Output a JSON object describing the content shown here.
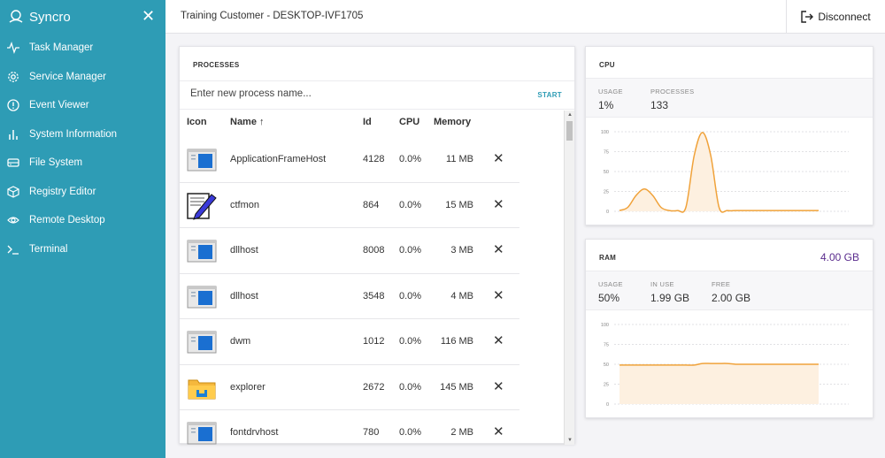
{
  "app": {
    "name": "Syncro",
    "close_icon": "close-icon"
  },
  "sidebar": {
    "items": [
      {
        "label": "Task Manager",
        "icon": "activity-icon"
      },
      {
        "label": "Service Manager",
        "icon": "gear-icon"
      },
      {
        "label": "Event Viewer",
        "icon": "alert-circle-icon"
      },
      {
        "label": "System Information",
        "icon": "bar-chart-icon"
      },
      {
        "label": "File System",
        "icon": "hard-drive-icon"
      },
      {
        "label": "Registry Editor",
        "icon": "box-icon"
      },
      {
        "label": "Remote Desktop",
        "icon": "eye-icon"
      },
      {
        "label": "Terminal",
        "icon": "terminal-icon"
      }
    ]
  },
  "header": {
    "title": "Training Customer - DESKTOP-IVF1705",
    "disconnect_label": "Disconnect"
  },
  "processes": {
    "title": "PROCESSES",
    "new_placeholder": "Enter new process name...",
    "start_label": "START",
    "columns": {
      "icon": "Icon",
      "name": "Name",
      "id": "Id",
      "cpu": "CPU",
      "memory": "Memory"
    },
    "rows": [
      {
        "icon": "window-app-icon",
        "name": "ApplicationFrameHost",
        "id": "4128",
        "cpu": "0.0%",
        "memory": "11 MB"
      },
      {
        "icon": "ctfmon-pen-icon",
        "name": "ctfmon",
        "id": "864",
        "cpu": "0.0%",
        "memory": "15 MB"
      },
      {
        "icon": "window-app-icon",
        "name": "dllhost",
        "id": "8008",
        "cpu": "0.0%",
        "memory": "3 MB"
      },
      {
        "icon": "window-app-icon",
        "name": "dllhost",
        "id": "3548",
        "cpu": "0.0%",
        "memory": "4 MB"
      },
      {
        "icon": "window-app-icon",
        "name": "dwm",
        "id": "1012",
        "cpu": "0.0%",
        "memory": "116 MB"
      },
      {
        "icon": "folder-explorer-icon",
        "name": "explorer",
        "id": "2672",
        "cpu": "0.0%",
        "memory": "145 MB"
      },
      {
        "icon": "window-app-icon",
        "name": "fontdrvhost",
        "id": "780",
        "cpu": "0.0%",
        "memory": "2 MB"
      }
    ]
  },
  "cpu": {
    "title": "CPU",
    "usage_label": "USAGE",
    "usage_value": "1%",
    "processes_label": "PROCESSES",
    "processes_value": "133"
  },
  "ram": {
    "title": "RAM",
    "total": "4.00 GB",
    "usage_label": "USAGE",
    "usage_value": "50%",
    "inuse_label": "IN USE",
    "inuse_value": "1.99 GB",
    "free_label": "FREE",
    "free_value": "2.00 GB"
  },
  "colors": {
    "sidebar": "#2e9cb5",
    "accent": "#2e9cb5",
    "line": "#f0a23a",
    "fill": "#fdf0e0",
    "ram_total": "#5b2d8e"
  },
  "chart_data": [
    {
      "type": "area",
      "title": "CPU",
      "yticks": [
        0,
        25,
        50,
        75,
        100
      ],
      "ylim": [
        0,
        100
      ],
      "values": [
        1,
        5,
        20,
        28,
        20,
        5,
        1,
        1,
        5,
        70,
        99,
        70,
        5,
        1,
        1,
        1,
        1,
        1,
        1,
        1,
        1,
        1,
        1,
        1,
        1
      ],
      "grid": true
    },
    {
      "type": "area",
      "title": "RAM",
      "yticks": [
        0,
        25,
        50,
        75,
        100
      ],
      "ylim": [
        0,
        100
      ],
      "values": [
        49,
        49,
        49,
        49,
        49,
        49,
        49,
        49,
        49,
        49,
        51,
        51,
        51,
        51,
        50,
        50,
        50,
        50,
        50,
        50,
        50,
        50,
        50,
        50,
        50
      ],
      "grid": true
    }
  ]
}
